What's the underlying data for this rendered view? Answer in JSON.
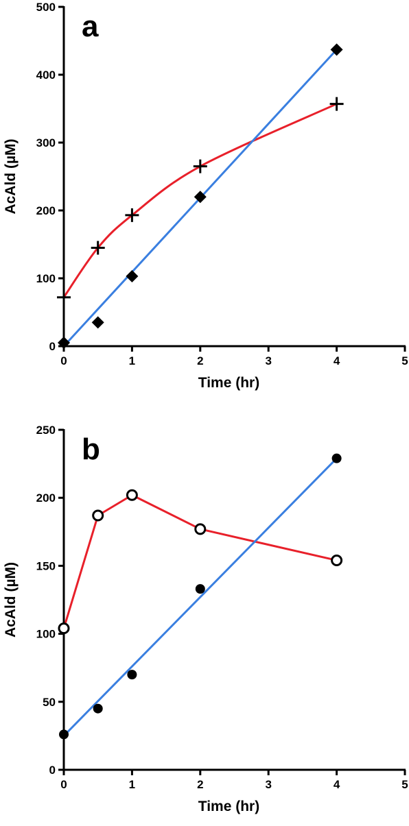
{
  "chart_data": [
    {
      "panel": "a",
      "type": "scatter",
      "xlabel": "Time (hr)",
      "ylabel": "AcAld (µM)",
      "xlim": [
        0,
        5
      ],
      "ylim": [
        0,
        500
      ],
      "xticks": [
        "0",
        "1",
        "2",
        "3",
        "4",
        "5"
      ],
      "yticks": [
        "0",
        "100",
        "200",
        "300",
        "400",
        "500"
      ],
      "grid": false,
      "series": [
        {
          "marker": "cross",
          "line": "smooth",
          "color": "#e8202a",
          "x": [
            0,
            0.5,
            1,
            2,
            4
          ],
          "y": [
            72,
            145,
            193,
            265,
            357
          ]
        },
        {
          "marker": "diamond",
          "line": "linear-fit",
          "color": "#3a7fe0",
          "x": [
            0,
            0.5,
            1,
            2,
            4
          ],
          "y": [
            5,
            35,
            103,
            220,
            437
          ],
          "fit": {
            "x": [
              0,
              4
            ],
            "y": [
              0,
              437
            ]
          }
        }
      ]
    },
    {
      "panel": "b",
      "type": "scatter",
      "xlabel": "Time (hr)",
      "ylabel": "AcAld (µM)",
      "xlim": [
        0,
        5
      ],
      "ylim": [
        0,
        250
      ],
      "xticks": [
        "0",
        "1",
        "2",
        "3",
        "4",
        "5"
      ],
      "yticks": [
        "0",
        "50",
        "100",
        "150",
        "200",
        "250"
      ],
      "grid": false,
      "series": [
        {
          "marker": "open-circle",
          "line": "segments",
          "color": "#e8202a",
          "x": [
            0,
            0.5,
            1,
            2,
            4
          ],
          "y": [
            104,
            187,
            202,
            177,
            154
          ]
        },
        {
          "marker": "filled-circle",
          "line": "linear-fit",
          "color": "#3a7fe0",
          "x": [
            0,
            0.5,
            1,
            2,
            4
          ],
          "y": [
            26,
            45,
            70,
            133,
            229
          ],
          "fit": {
            "x": [
              0,
              4
            ],
            "y": [
              25,
              229
            ]
          }
        }
      ]
    }
  ]
}
